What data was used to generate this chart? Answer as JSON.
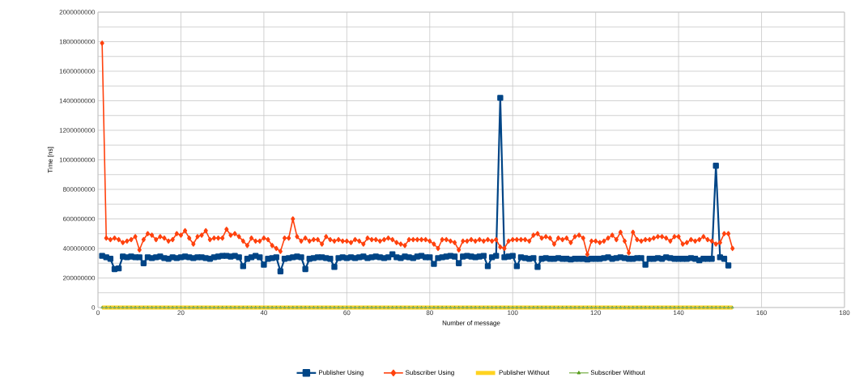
{
  "chart_data": {
    "type": "line",
    "xlabel": "Number of message",
    "ylabel": "Time [ns]",
    "xlim": [
      0,
      180
    ],
    "xticks": [
      0,
      20,
      40,
      60,
      80,
      100,
      120,
      140,
      160,
      180
    ],
    "ylim": [
      0,
      2000000000
    ],
    "yticks": [
      0,
      200000000,
      400000000,
      600000000,
      800000000,
      1000000000,
      1200000000,
      1400000000,
      1600000000,
      1800000000,
      2000000000
    ],
    "grid": true,
    "legend": "bottom",
    "x": [
      1,
      2,
      3,
      4,
      5,
      6,
      7,
      8,
      9,
      10,
      11,
      12,
      13,
      14,
      15,
      16,
      17,
      18,
      19,
      20,
      21,
      22,
      23,
      24,
      25,
      26,
      27,
      28,
      29,
      30,
      31,
      32,
      33,
      34,
      35,
      36,
      37,
      38,
      39,
      40,
      41,
      42,
      43,
      44,
      45,
      46,
      47,
      48,
      49,
      50,
      51,
      52,
      53,
      54,
      55,
      56,
      57,
      58,
      59,
      60,
      61,
      62,
      63,
      64,
      65,
      66,
      67,
      68,
      69,
      70,
      71,
      72,
      73,
      74,
      75,
      76,
      77,
      78,
      79,
      80,
      81,
      82,
      83,
      84,
      85,
      86,
      87,
      88,
      89,
      90,
      91,
      92,
      93,
      94,
      95,
      96,
      97,
      98,
      99,
      100,
      101,
      102,
      103,
      104,
      105,
      106,
      107,
      108,
      109,
      110,
      111,
      112,
      113,
      114,
      115,
      116,
      117,
      118,
      119,
      120,
      121,
      122,
      123,
      124,
      125,
      126,
      127,
      128,
      129,
      130,
      131,
      132,
      133,
      134,
      135,
      136,
      137,
      138,
      139,
      140,
      141,
      142,
      143,
      144,
      145,
      146,
      147,
      148,
      149,
      150,
      151,
      152,
      153
    ],
    "series": [
      {
        "name": "Publisher Using",
        "color": "#004586",
        "marker": "square",
        "values": [
          350000000.0,
          340000000.0,
          330000000.0,
          260000000.0,
          265000000.0,
          345000000.0,
          340000000.0,
          345000000.0,
          340000000.0,
          340000000.0,
          300000000.0,
          340000000.0,
          335000000.0,
          340000000.0,
          345000000.0,
          335000000.0,
          330000000.0,
          340000000.0,
          335000000.0,
          340000000.0,
          345000000.0,
          340000000.0,
          335000000.0,
          340000000.0,
          340000000.0,
          335000000.0,
          330000000.0,
          340000000.0,
          345000000.0,
          350000000.0,
          350000000.0,
          345000000.0,
          350000000.0,
          340000000.0,
          280000000.0,
          330000000.0,
          340000000.0,
          350000000.0,
          340000000.0,
          290000000.0,
          330000000.0,
          335000000.0,
          340000000.0,
          245000000.0,
          330000000.0,
          335000000.0,
          340000000.0,
          345000000.0,
          340000000.0,
          260000000.0,
          330000000.0,
          335000000.0,
          340000000.0,
          340000000.0,
          335000000.0,
          330000000.0,
          275000000.0,
          335000000.0,
          340000000.0,
          335000000.0,
          340000000.0,
          335000000.0,
          340000000.0,
          345000000.0,
          335000000.0,
          340000000.0,
          345000000.0,
          340000000.0,
          335000000.0,
          340000000.0,
          360000000.0,
          340000000.0,
          335000000.0,
          345000000.0,
          340000000.0,
          335000000.0,
          345000000.0,
          350000000.0,
          340000000.0,
          340000000.0,
          295000000.0,
          335000000.0,
          340000000.0,
          345000000.0,
          350000000.0,
          345000000.0,
          300000000.0,
          345000000.0,
          350000000.0,
          345000000.0,
          340000000.0,
          345000000.0,
          350000000.0,
          280000000.0,
          340000000.0,
          350000000.0,
          1420000000.0,
          340000000.0,
          345000000.0,
          350000000.0,
          280000000.0,
          340000000.0,
          335000000.0,
          330000000.0,
          335000000.0,
          275000000.0,
          330000000.0,
          335000000.0,
          330000000.0,
          330000000.0,
          335000000.0,
          330000000.0,
          330000000.0,
          325000000.0,
          330000000.0,
          330000000.0,
          330000000.0,
          325000000.0,
          330000000.0,
          330000000.0,
          330000000.0,
          335000000.0,
          340000000.0,
          330000000.0,
          335000000.0,
          340000000.0,
          335000000.0,
          330000000.0,
          330000000.0,
          335000000.0,
          335000000.0,
          290000000.0,
          330000000.0,
          330000000.0,
          335000000.0,
          330000000.0,
          340000000.0,
          335000000.0,
          330000000.0,
          330000000.0,
          330000000.0,
          330000000.0,
          335000000.0,
          330000000.0,
          320000000.0,
          330000000.0,
          330000000.0,
          330000000.0,
          960000000.0,
          340000000.0,
          330000000.0,
          285000000.0,
          null
        ]
      },
      {
        "name": "Subscriber Using",
        "color": "#ff420e",
        "marker": "diamond",
        "values": [
          1790000000.0,
          470000000.0,
          460000000.0,
          470000000.0,
          460000000.0,
          440000000.0,
          450000000.0,
          460000000.0,
          480000000.0,
          390000000.0,
          460000000.0,
          500000000.0,
          490000000.0,
          460000000.0,
          480000000.0,
          470000000.0,
          450000000.0,
          460000000.0,
          500000000.0,
          490000000.0,
          520000000.0,
          470000000.0,
          430000000.0,
          480000000.0,
          490000000.0,
          520000000.0,
          460000000.0,
          470000000.0,
          470000000.0,
          470000000.0,
          530000000.0,
          490000000.0,
          500000000.0,
          480000000.0,
          450000000.0,
          420000000.0,
          470000000.0,
          450000000.0,
          450000000.0,
          470000000.0,
          460000000.0,
          420000000.0,
          400000000.0,
          380000000.0,
          470000000.0,
          470000000.0,
          600000000.0,
          480000000.0,
          450000000.0,
          470000000.0,
          450000000.0,
          460000000.0,
          460000000.0,
          430000000.0,
          480000000.0,
          460000000.0,
          450000000.0,
          460000000.0,
          450000000.0,
          450000000.0,
          440000000.0,
          460000000.0,
          450000000.0,
          430000000.0,
          470000000.0,
          460000000.0,
          460000000.0,
          450000000.0,
          460000000.0,
          470000000.0,
          460000000.0,
          440000000.0,
          430000000.0,
          420000000.0,
          460000000.0,
          460000000.0,
          460000000.0,
          460000000.0,
          460000000.0,
          450000000.0,
          430000000.0,
          400000000.0,
          460000000.0,
          460000000.0,
          450000000.0,
          440000000.0,
          390000000.0,
          450000000.0,
          450000000.0,
          460000000.0,
          450000000.0,
          460000000.0,
          450000000.0,
          460000000.0,
          450000000.0,
          460000000.0,
          410000000.0,
          400000000.0,
          450000000.0,
          460000000.0,
          460000000.0,
          460000000.0,
          460000000.0,
          450000000.0,
          490000000.0,
          500000000.0,
          470000000.0,
          480000000.0,
          470000000.0,
          430000000.0,
          470000000.0,
          460000000.0,
          470000000.0,
          440000000.0,
          480000000.0,
          490000000.0,
          470000000.0,
          360000000.0,
          450000000.0,
          450000000.0,
          440000000.0,
          450000000.0,
          470000000.0,
          490000000.0,
          460000000.0,
          510000000.0,
          450000000.0,
          370000000.0,
          510000000.0,
          460000000.0,
          450000000.0,
          460000000.0,
          460000000.0,
          470000000.0,
          480000000.0,
          480000000.0,
          470000000.0,
          450000000.0,
          480000000.0,
          480000000.0,
          430000000.0,
          440000000.0,
          460000000.0,
          450000000.0,
          460000000.0,
          480000000.0,
          460000000.0,
          450000000.0,
          430000000.0,
          440000000.0,
          500000000.0,
          500000000.0,
          400000000.0
        ]
      },
      {
        "name": "Publisher Without",
        "color": "#ffd320",
        "marker": "none",
        "values": [
          0,
          0,
          0,
          0,
          0,
          0,
          0,
          0,
          0,
          0,
          0,
          0,
          0,
          0,
          0,
          0,
          0,
          0,
          0,
          0,
          0,
          0,
          0,
          0,
          0,
          0,
          0,
          0,
          0,
          0,
          0,
          0,
          0,
          0,
          0,
          0,
          0,
          0,
          0,
          0,
          0,
          0,
          0,
          0,
          0,
          0,
          0,
          0,
          0,
          0,
          0,
          0,
          0,
          0,
          0,
          0,
          0,
          0,
          0,
          0,
          0,
          0,
          0,
          0,
          0,
          0,
          0,
          0,
          0,
          0,
          0,
          0,
          0,
          0,
          0,
          0,
          0,
          0,
          0,
          0,
          0,
          0,
          0,
          0,
          0,
          0,
          0,
          0,
          0,
          0,
          0,
          0,
          0,
          0,
          0,
          0,
          0,
          0,
          0,
          0,
          0,
          0,
          0,
          0,
          0,
          0,
          0,
          0,
          0,
          0,
          0,
          0,
          0,
          0,
          0,
          0,
          0,
          0,
          0,
          0,
          0,
          0,
          0,
          0,
          0,
          0,
          0,
          0,
          0,
          0,
          0,
          0,
          0,
          0,
          0,
          0,
          0,
          0,
          0,
          0,
          0,
          0,
          0,
          0,
          0,
          0,
          0,
          0,
          0,
          0,
          0,
          0,
          0
        ]
      },
      {
        "name": "Subscriber Without",
        "color": "#579d1c",
        "marker": "triangle",
        "values": [
          0,
          0,
          0,
          0,
          0,
          0,
          0,
          0,
          0,
          0,
          0,
          0,
          0,
          0,
          0,
          0,
          0,
          0,
          0,
          0,
          0,
          0,
          0,
          0,
          0,
          0,
          0,
          0,
          0,
          0,
          0,
          0,
          0,
          0,
          0,
          0,
          0,
          0,
          0,
          0,
          0,
          0,
          0,
          0,
          0,
          0,
          0,
          0,
          0,
          0,
          0,
          0,
          0,
          0,
          0,
          0,
          0,
          0,
          0,
          0,
          0,
          0,
          0,
          0,
          0,
          0,
          0,
          0,
          0,
          0,
          0,
          0,
          0,
          0,
          0,
          0,
          0,
          0,
          0,
          0,
          0,
          0,
          0,
          0,
          0,
          0,
          0,
          0,
          0,
          0,
          0,
          0,
          0,
          0,
          0,
          0,
          0,
          0,
          0,
          0,
          0,
          0,
          0,
          0,
          0,
          0,
          0,
          0,
          0,
          0,
          0,
          0,
          0,
          0,
          0,
          0,
          0,
          0,
          0,
          0,
          0,
          0,
          0,
          0,
          0,
          0,
          0,
          0,
          0,
          0,
          0,
          0,
          0,
          0,
          0,
          0,
          0,
          0,
          0,
          0,
          0,
          0,
          0,
          0,
          0,
          0,
          0,
          0,
          0,
          0,
          0,
          0,
          0
        ]
      }
    ]
  }
}
